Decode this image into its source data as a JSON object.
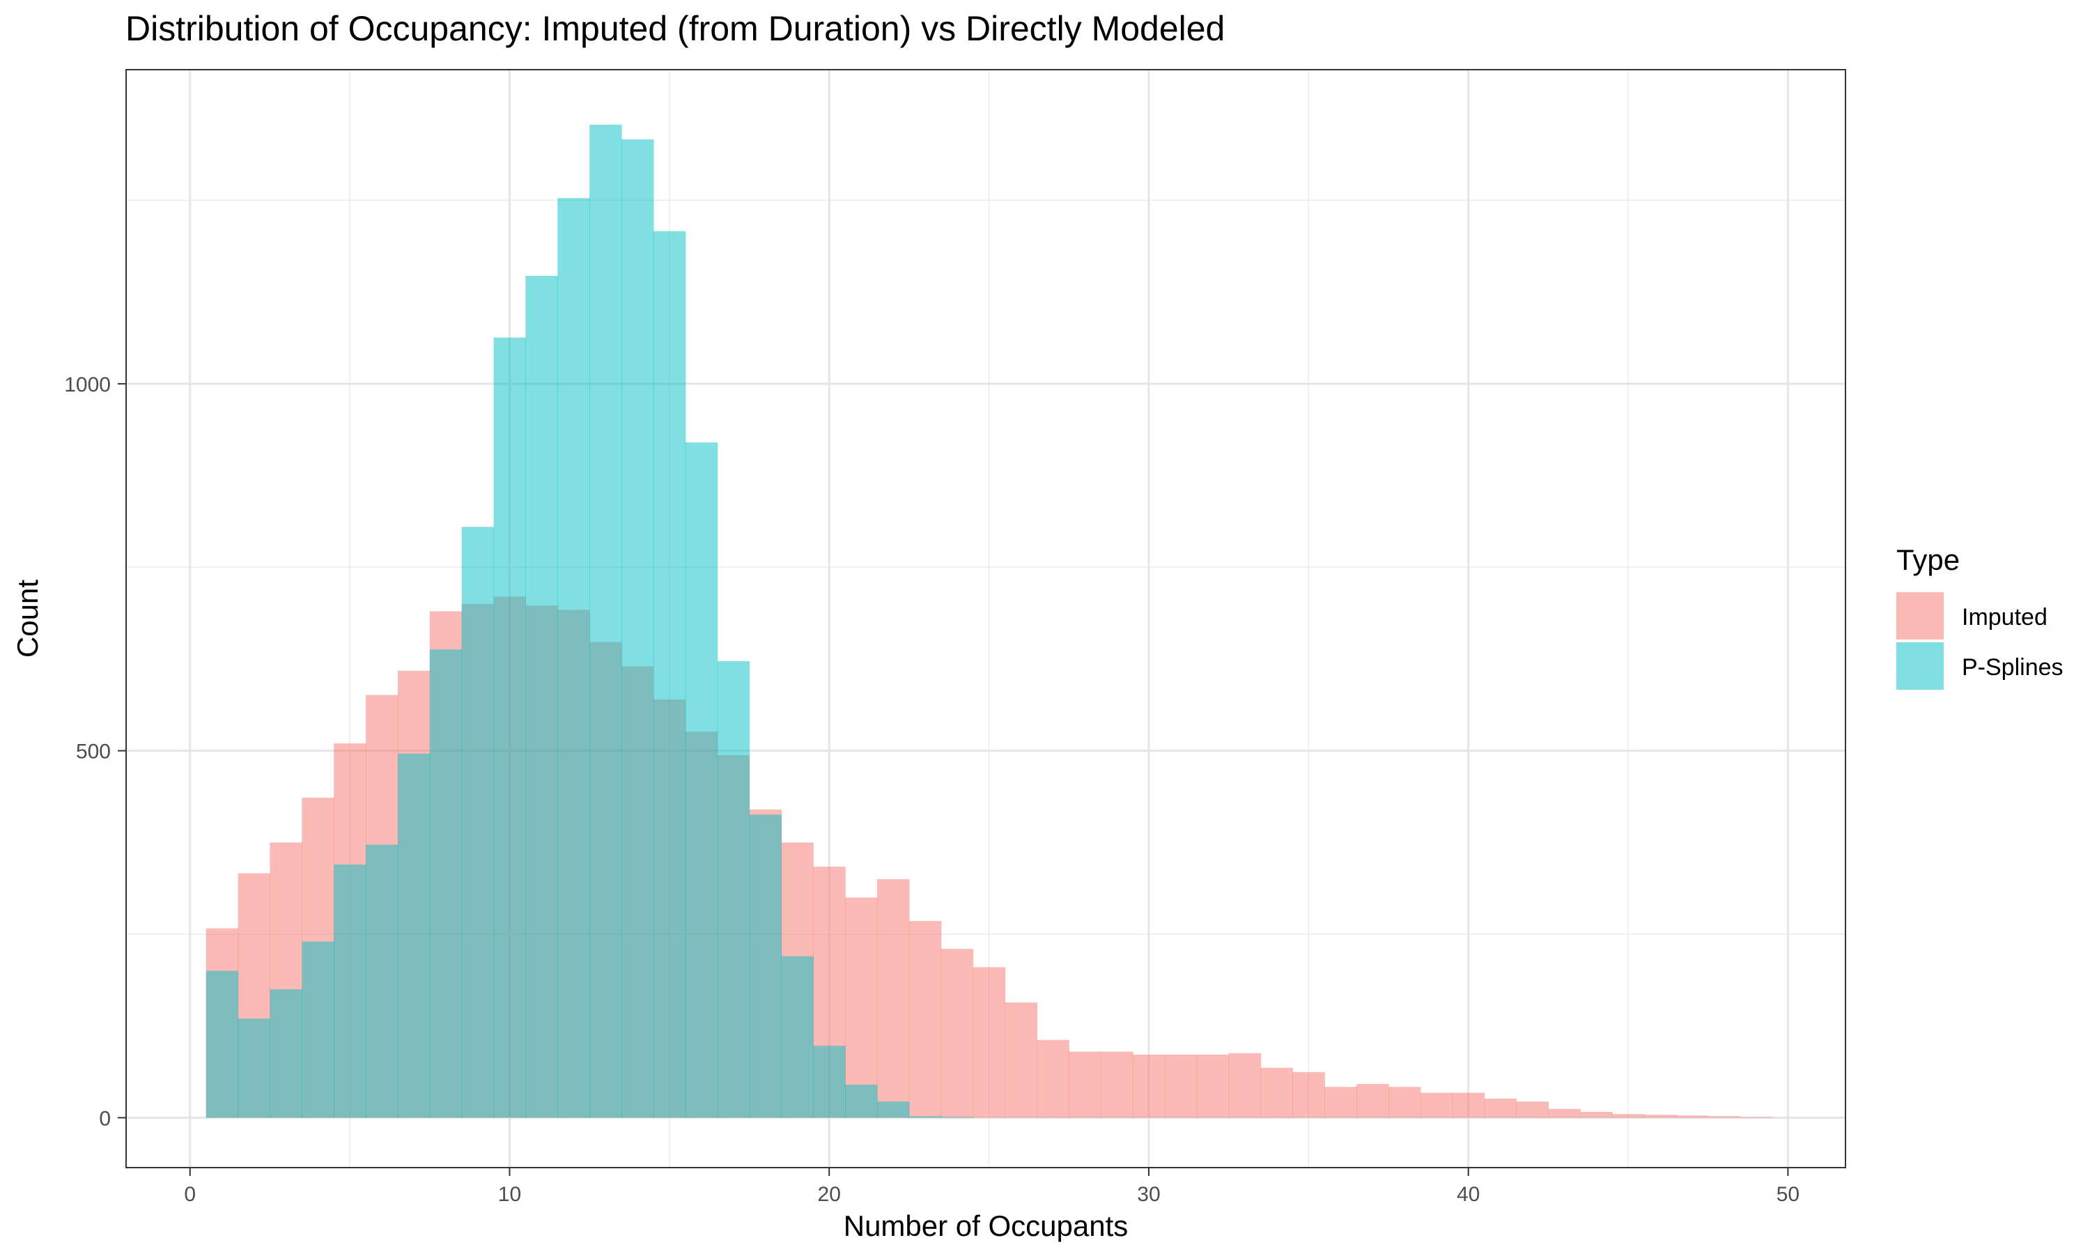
{
  "chart_data": {
    "type": "histogram",
    "title": "Distribution of Occupancy: Imputed (from Duration) vs Directly Modeled",
    "xlabel": "Number of Occupants",
    "ylabel": "Count",
    "xlim": [
      -2,
      51.8
    ],
    "ylim": [
      -68,
      1428
    ],
    "x_ticks": [
      0,
      10,
      20,
      30,
      40,
      50
    ],
    "y_ticks": [
      0,
      500,
      1000
    ],
    "bin_width": 1,
    "bin_start": 0.5,
    "grid": true,
    "legend_title": "Type",
    "legend_position": "right",
    "series": [
      {
        "name": "Imputed",
        "color": "#F8766D",
        "opacity": 0.5,
        "values": [
          258,
          333,
          375,
          436,
          510,
          576,
          609,
          690,
          700,
          710,
          698,
          692,
          648,
          615,
          570,
          526,
          494,
          420,
          375,
          342,
          300,
          325,
          268,
          230,
          205,
          157,
          106,
          90,
          90,
          86,
          86,
          86,
          88,
          68,
          62,
          42,
          46,
          42,
          34,
          34,
          26,
          22,
          12,
          8,
          5,
          4,
          3,
          2,
          1
        ]
      },
      {
        "name": "P-Splines",
        "color": "#00BFC4",
        "opacity": 0.5,
        "values": [
          200,
          135,
          175,
          240,
          345,
          372,
          496,
          638,
          805,
          1063,
          1147,
          1253,
          1353,
          1333,
          1208,
          920,
          622,
          413,
          220,
          98,
          45,
          22,
          2,
          1,
          0,
          0,
          0,
          0,
          0,
          0,
          0,
          0,
          0,
          0,
          0,
          0,
          0,
          0,
          0,
          0,
          0,
          0,
          0,
          0,
          0,
          0,
          0,
          0,
          0
        ]
      }
    ]
  }
}
